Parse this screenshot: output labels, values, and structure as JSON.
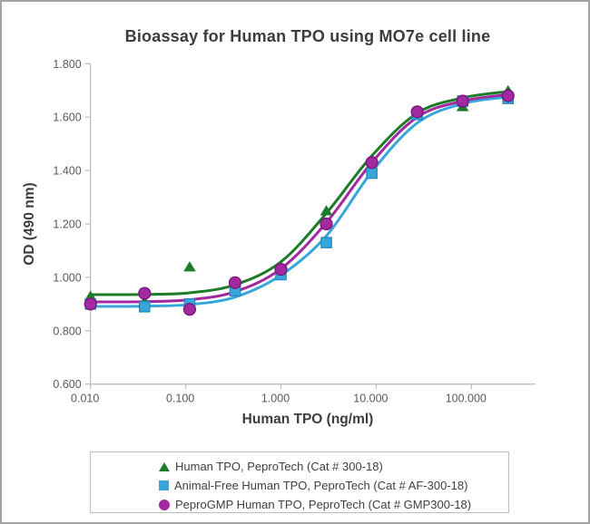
{
  "chart_data": {
    "type": "scatter",
    "title": "Bioassay for Human TPO using MO7e cell line",
    "xlabel": "Human TPO (ng/ml)",
    "ylabel": "OD (490 nm)",
    "x_scale": "log",
    "xlim": [
      0.01,
      450
    ],
    "ylim": [
      0.6,
      1.8
    ],
    "grid": false,
    "legend_position": "bottom",
    "x_ticks": [
      {
        "value": 0.01,
        "label": "0.010"
      },
      {
        "value": 0.1,
        "label": "0.100"
      },
      {
        "value": 1,
        "label": "1.000"
      },
      {
        "value": 10,
        "label": "10.000"
      },
      {
        "value": 100,
        "label": "100.000"
      }
    ],
    "y_ticks": [
      {
        "value": 0.6,
        "label": "0.600"
      },
      {
        "value": 0.8,
        "label": "0.800"
      },
      {
        "value": 1.0,
        "label": "1.000"
      },
      {
        "value": 1.2,
        "label": "1.200"
      },
      {
        "value": 1.4,
        "label": "1.400"
      },
      {
        "value": 1.6,
        "label": "1.600"
      },
      {
        "value": 1.8,
        "label": "1.800"
      }
    ],
    "x": [
      0.01,
      0.037,
      0.11,
      0.33,
      1,
      3,
      9,
      27,
      81,
      243
    ],
    "series": [
      {
        "name": "Human TPO, PeproTech (Cat # 300-18)",
        "marker": "triangle",
        "color": "#1d7b2a",
        "stroke": "#166020",
        "values": [
          0.93,
          0.91,
          1.04,
          0.98,
          1.04,
          1.25,
          1.44,
          1.62,
          1.64,
          1.7
        ],
        "curve": [
          0.935,
          0.936,
          0.942,
          0.972,
          1.058,
          1.24,
          1.455,
          1.615,
          1.672,
          1.696
        ]
      },
      {
        "name": "Animal-Free Human TPO, PeproTech (Cat # AF-300-18)",
        "marker": "square",
        "color": "#38a6da",
        "stroke": "#1f86c0",
        "values": [
          0.9,
          0.89,
          0.9,
          0.95,
          1.01,
          1.13,
          1.39,
          1.61,
          1.66,
          1.67
        ],
        "curve": [
          0.891,
          0.892,
          0.898,
          0.926,
          1.008,
          1.155,
          1.395,
          1.578,
          1.65,
          1.676
        ]
      },
      {
        "name": "PeproGMP Human TPO, PeproTech (Cat # GMP300-18)",
        "marker": "circle",
        "color": "#a229a0",
        "stroke": "#7c1679",
        "values": [
          0.9,
          0.94,
          0.88,
          0.98,
          1.03,
          1.2,
          1.43,
          1.62,
          1.66,
          1.68
        ],
        "curve": [
          0.908,
          0.909,
          0.916,
          0.946,
          1.032,
          1.205,
          1.43,
          1.6,
          1.66,
          1.685
        ]
      }
    ]
  }
}
